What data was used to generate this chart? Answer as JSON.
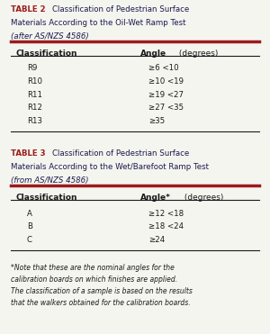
{
  "bg_color": "#f5f5f0",
  "dark_red": "#9b1c1c",
  "dark_blue": "#1a1a4e",
  "black": "#1a1a1a",
  "table2_title_bold": "TABLE 2",
  "table2_col1_header": "Classification",
  "table2_col2_header_bold": "Angle",
  "table2_col2_header_rest": " (degrees)",
  "table2_rows": [
    [
      "R9",
      "≥6 <10"
    ],
    [
      "R10",
      "≥10 <19"
    ],
    [
      "R11",
      "≥19 <27"
    ],
    [
      "R12",
      "≥27 <35"
    ],
    [
      "R13",
      "≥35"
    ]
  ],
  "table3_title_bold": "TABLE 3",
  "table3_col1_header": "Classification",
  "table3_col2_header_bold": "Angle*",
  "table3_col2_header_rest": " (degrees)",
  "table3_rows": [
    [
      "A",
      "≥12 <18"
    ],
    [
      "B",
      "≥18 <24"
    ],
    [
      "C",
      "≥24"
    ]
  ],
  "footnote": "*Note that these are the nominal angles for the\ncalibration boards on which finishes are applied.\nThe classification of a sample is based on the results\nthat the walkers obtained for the calibration boards."
}
